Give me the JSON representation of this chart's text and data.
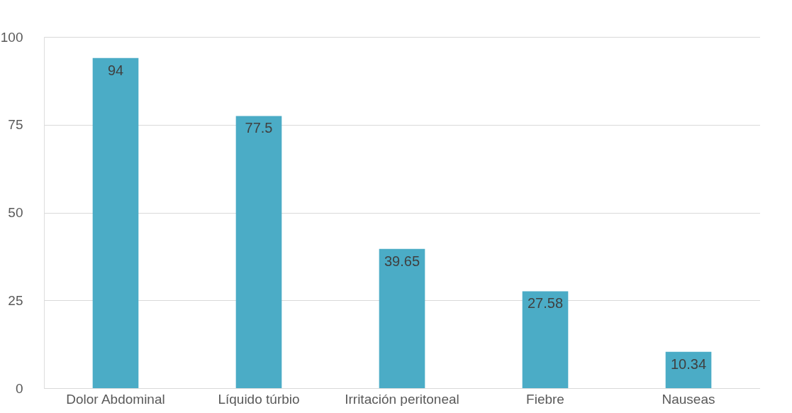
{
  "chart_data": {
    "type": "bar",
    "categories": [
      "Dolor Abdominal",
      "Líquido túrbio",
      "Irritación peritoneal",
      "Fiebre",
      "Nauseas"
    ],
    "values": [
      94,
      77.5,
      39.65,
      27.58,
      10.34
    ],
    "color": "#4bacc6",
    "ylim": [
      0,
      100
    ],
    "yticks": [
      0,
      25,
      50,
      75,
      100
    ],
    "grid": "y",
    "data_labels": true
  }
}
